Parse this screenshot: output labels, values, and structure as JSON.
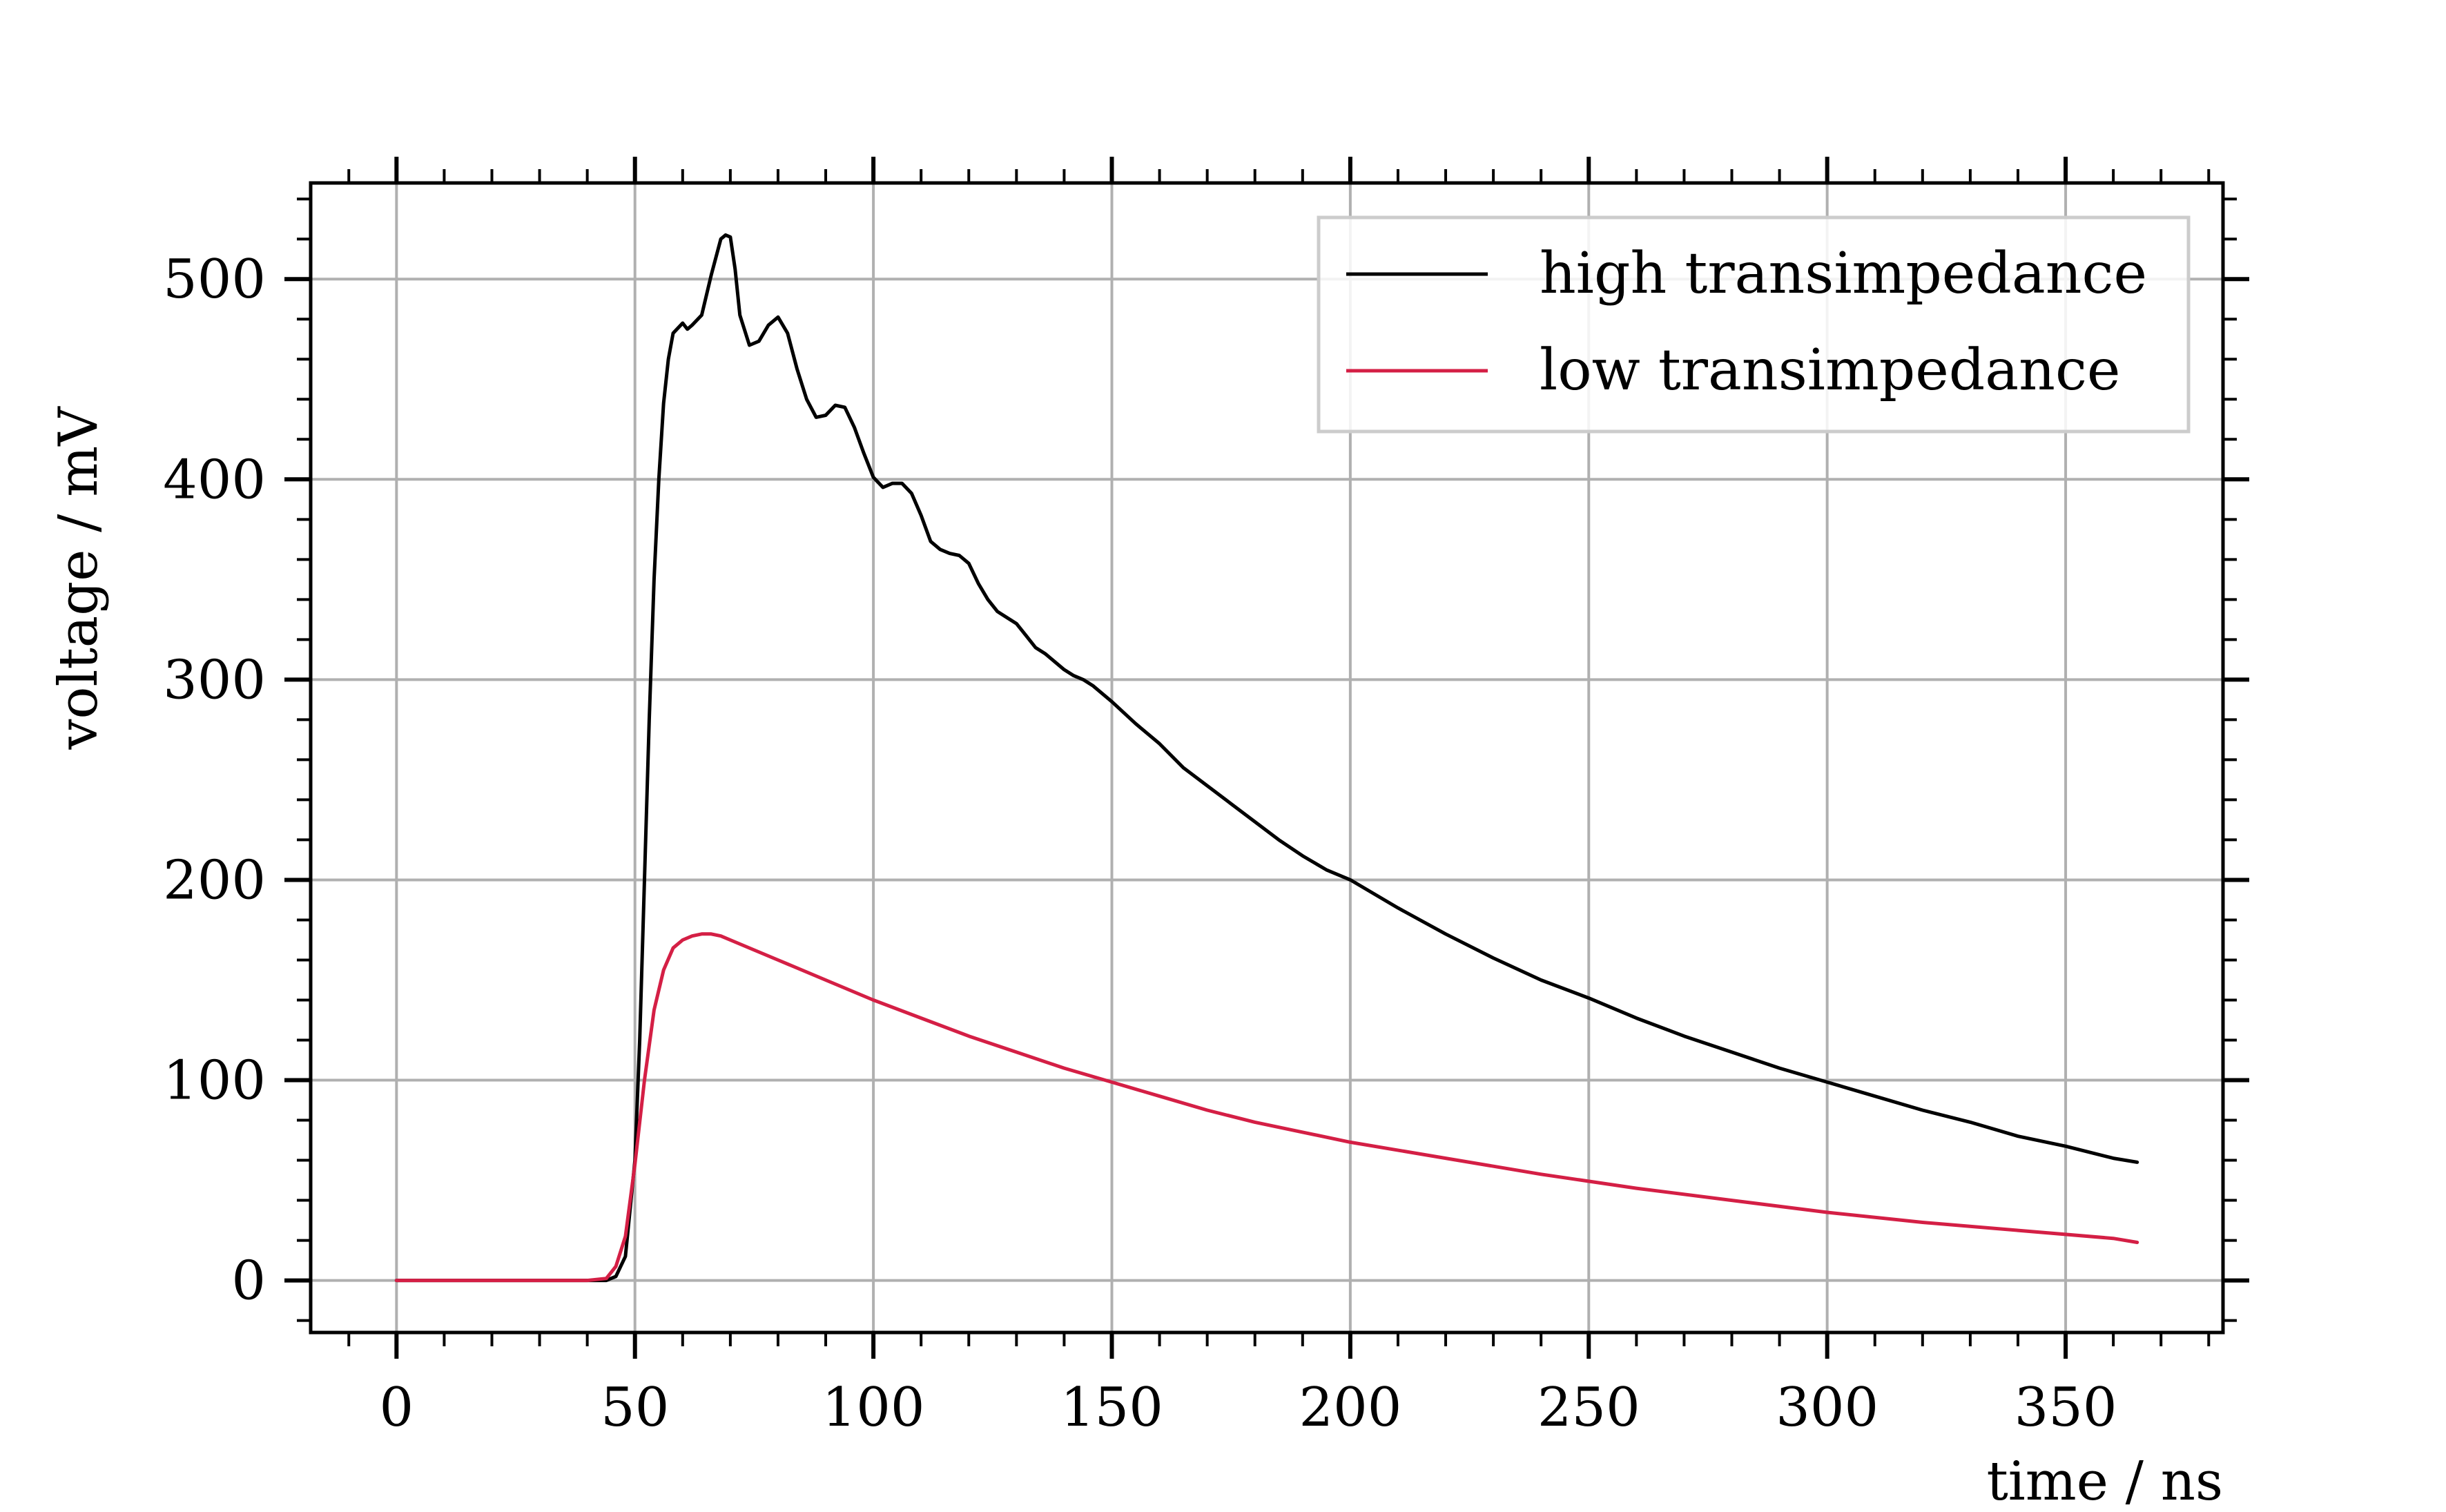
{
  "chart_data": {
    "type": "line",
    "title": "",
    "xlabel": "time / ns",
    "ylabel": "voltage / mV",
    "xlim": [
      -18,
      383
    ],
    "ylim": [
      -26,
      548
    ],
    "xticks": [
      0,
      50,
      100,
      150,
      200,
      250,
      300,
      350
    ],
    "yticks": [
      0,
      100,
      200,
      300,
      400,
      500
    ],
    "grid": true,
    "legend": "top-right",
    "series": [
      {
        "name": "high transimpedance",
        "color": "#000000",
        "x": [
          0,
          10,
          20,
          30,
          40,
          44,
          46,
          48,
          50,
          51,
          52,
          53,
          54,
          55,
          56,
          57,
          58,
          60,
          61,
          62,
          64,
          66,
          68,
          69,
          70,
          71,
          72,
          74,
          76,
          78,
          80,
          82,
          84,
          86,
          88,
          90,
          92,
          94,
          96,
          98,
          100,
          102,
          104,
          106,
          108,
          110,
          112,
          114,
          116,
          118,
          120,
          122,
          124,
          126,
          128,
          130,
          132,
          134,
          136,
          138,
          140,
          142,
          144,
          146,
          148,
          150,
          155,
          160,
          165,
          170,
          175,
          180,
          185,
          190,
          195,
          200,
          210,
          220,
          230,
          240,
          250,
          260,
          270,
          280,
          290,
          300,
          310,
          320,
          330,
          340,
          350,
          360,
          365
        ],
        "y": [
          0,
          0,
          0,
          0,
          0,
          0,
          2,
          12,
          60,
          120,
          200,
          280,
          350,
          400,
          438,
          460,
          473,
          478,
          475,
          477,
          482,
          502,
          520,
          522,
          521,
          505,
          482,
          467,
          469,
          477,
          481,
          473,
          455,
          440,
          431,
          432,
          437,
          436,
          426,
          413,
          401,
          396,
          398,
          398,
          393,
          382,
          369,
          365,
          363,
          362,
          358,
          348,
          340,
          334,
          331,
          328,
          322,
          316,
          313,
          309,
          305,
          302,
          300,
          297,
          293,
          289,
          278,
          268,
          256,
          247,
          238,
          229,
          220,
          212,
          205,
          200,
          186,
          173,
          161,
          150,
          141,
          131,
          122,
          114,
          106,
          99,
          92,
          85,
          79,
          72,
          67,
          61,
          59
        ]
      },
      {
        "name": "low transimpedance",
        "color": "#d41f45",
        "x": [
          0,
          10,
          20,
          30,
          40,
          44,
          46,
          48,
          50,
          52,
          54,
          56,
          58,
          60,
          62,
          64,
          66,
          68,
          70,
          75,
          80,
          90,
          100,
          110,
          120,
          130,
          140,
          150,
          160,
          170,
          180,
          190,
          200,
          220,
          240,
          260,
          280,
          300,
          320,
          340,
          360,
          365
        ],
        "y": [
          0,
          0,
          0,
          0,
          0,
          1,
          7,
          22,
          58,
          100,
          135,
          155,
          166,
          170,
          172,
          173,
          173,
          172,
          170,
          165,
          160,
          150,
          140,
          131,
          122,
          114,
          106,
          99,
          92,
          85,
          79,
          74,
          69,
          61,
          53,
          46,
          40,
          34,
          29,
          25,
          21,
          19
        ]
      }
    ]
  }
}
